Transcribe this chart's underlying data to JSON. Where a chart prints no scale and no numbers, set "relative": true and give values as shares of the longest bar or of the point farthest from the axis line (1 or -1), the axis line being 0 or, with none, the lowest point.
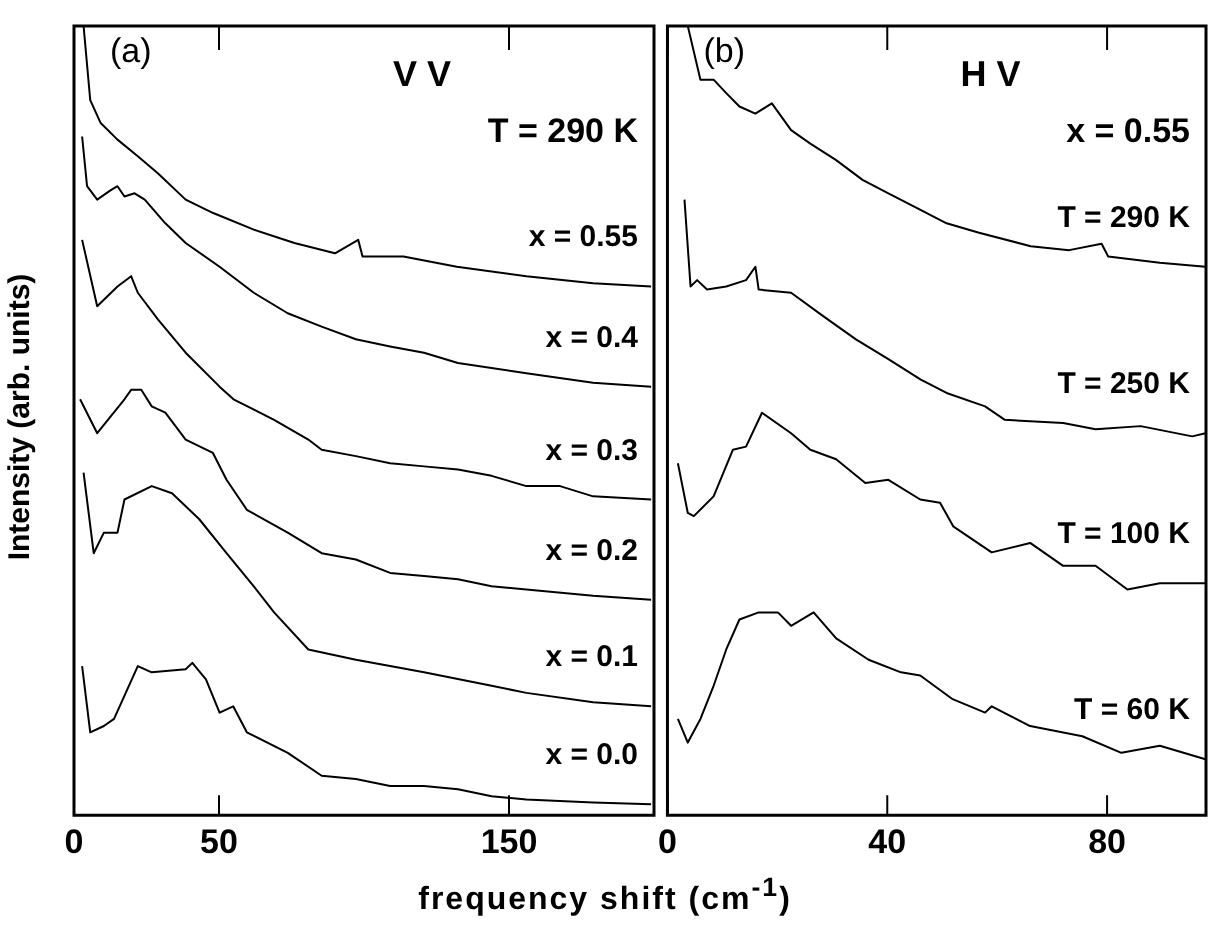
{
  "chart_data": [
    {
      "type": "line",
      "relative": true,
      "xlabel": "frequency shift (cm$^{-1}$)",
      "ylabel": "Intensity (arb. units)",
      "xlim": [
        0,
        200
      ],
      "xticks": [
        0,
        50,
        150
      ],
      "legend": false,
      "marker": "none",
      "line_style": "solid",
      "annotations": [
        "(a)",
        "V V",
        "T = 290 K"
      ],
      "series": [
        {
          "name": "x = 0.55",
          "color": "#000000",
          "x": [
            3.3,
            5.6,
            9.2,
            15,
            22,
            29,
            38.5,
            48,
            62,
            76,
            90,
            98,
            99.5,
            113.6,
            132,
            156,
            179,
            199
          ],
          "values": [
            1.0,
            0.906,
            0.877,
            0.856,
            0.835,
            0.813,
            0.78,
            0.763,
            0.742,
            0.725,
            0.712,
            0.729,
            0.708,
            0.708,
            0.695,
            0.683,
            0.674,
            0.67
          ]
        },
        {
          "name": "x = 0.4",
          "color": "#000000",
          "x": [
            2.8,
            4.5,
            8,
            12.7,
            15,
            17.4,
            20.9,
            24.4,
            31.5,
            38.5,
            50.2,
            62,
            73.7,
            85.4,
            97.2,
            109,
            120.7,
            132.4,
            156,
            179,
            199
          ],
          "values": [
            0.86,
            0.797,
            0.78,
            0.792,
            0.797,
            0.784,
            0.788,
            0.78,
            0.75,
            0.725,
            0.695,
            0.662,
            0.636,
            0.619,
            0.603,
            0.594,
            0.586,
            0.573,
            0.56,
            0.548,
            0.543
          ]
        },
        {
          "name": "x = 0.3",
          "color": "#000000",
          "x": [
            2.8,
            8,
            15,
            19.7,
            22,
            29,
            38.5,
            50.2,
            55,
            69,
            80.8,
            85.4,
            97.2,
            109,
            120.7,
            132.4,
            144,
            156,
            167.6,
            179,
            199
          ],
          "values": [
            0.729,
            0.645,
            0.67,
            0.683,
            0.662,
            0.628,
            0.586,
            0.543,
            0.527,
            0.501,
            0.476,
            0.463,
            0.455,
            0.446,
            0.442,
            0.438,
            0.43,
            0.417,
            0.417,
            0.404,
            0.4
          ]
        },
        {
          "name": "x = 0.2",
          "color": "#000000",
          "x": [
            2.1,
            8,
            17.4,
            19.7,
            23.2,
            26.8,
            31.5,
            38.5,
            47.9,
            52.6,
            59.6,
            73.7,
            85.4,
            97.2,
            109,
            120.7,
            132.4,
            144,
            156,
            179,
            199
          ],
          "values": [
            0.527,
            0.484,
            0.527,
            0.539,
            0.539,
            0.518,
            0.51,
            0.476,
            0.459,
            0.425,
            0.387,
            0.358,
            0.332,
            0.324,
            0.307,
            0.303,
            0.299,
            0.29,
            0.286,
            0.278,
            0.273
          ]
        },
        {
          "name": "x = 0.1",
          "color": "#000000",
          "x": [
            3.3,
            6.8,
            10.3,
            15,
            17.4,
            26.8,
            33.8,
            43.2,
            52.6,
            62,
            69,
            80.8,
            97.2,
            109,
            120.7,
            144,
            156,
            179,
            199
          ],
          "values": [
            0.434,
            0.332,
            0.358,
            0.358,
            0.4,
            0.417,
            0.408,
            0.375,
            0.332,
            0.29,
            0.257,
            0.21,
            0.197,
            0.189,
            0.181,
            0.164,
            0.155,
            0.143,
            0.138
          ]
        },
        {
          "name": "x = 0.0",
          "color": "#000000",
          "x": [
            2.8,
            5.6,
            10.3,
            13.8,
            22,
            26.8,
            38.5,
            40.8,
            45.5,
            50.2,
            54.9,
            59.6,
            73.7,
            85.4,
            97.2,
            109,
            120.7,
            132.4,
            144,
            156,
            179,
            199
          ],
          "values": [
            0.189,
            0.105,
            0.113,
            0.122,
            0.189,
            0.181,
            0.185,
            0.193,
            0.172,
            0.13,
            0.138,
            0.105,
            0.079,
            0.05,
            0.046,
            0.037,
            0.037,
            0.033,
            0.024,
            0.02,
            0.016,
            0.014
          ]
        }
      ]
    },
    {
      "type": "line",
      "relative": true,
      "xlim": [
        0,
        98
      ],
      "xticks": [
        0,
        40,
        80
      ],
      "legend": false,
      "marker": "none",
      "line_style": "solid",
      "annotations": [
        "(b)",
        "H V",
        "x = 0.55"
      ],
      "series": [
        {
          "name": "T = 290 K",
          "color": "#000000",
          "x": [
            3.7,
            6,
            8.4,
            10.7,
            13.1,
            16,
            19,
            22.5,
            26,
            30.7,
            35.5,
            40.2,
            44.9,
            50.8,
            56.7,
            66.1,
            73.1,
            79,
            80.2,
            89.6,
            97.9
          ],
          "values": [
            1.0,
            0.932,
            0.932,
            0.915,
            0.898,
            0.889,
            0.902,
            0.868,
            0.851,
            0.83,
            0.805,
            0.788,
            0.771,
            0.75,
            0.738,
            0.721,
            0.716,
            0.724,
            0.708,
            0.7,
            0.695
          ]
        },
        {
          "name": "T = 250 K",
          "color": "#000000",
          "x": [
            3.1,
            4.2,
            5.4,
            7.2,
            10.7,
            14.3,
            16,
            16.6,
            22.5,
            28.4,
            34.3,
            40.2,
            46.1,
            50.8,
            57.8,
            61.4,
            72,
            77.9,
            86.1,
            95.5,
            97.9
          ],
          "values": [
            0.78,
            0.67,
            0.678,
            0.666,
            0.67,
            0.678,
            0.695,
            0.666,
            0.662,
            0.632,
            0.603,
            0.578,
            0.552,
            0.535,
            0.518,
            0.501,
            0.497,
            0.489,
            0.493,
            0.48,
            0.484
          ]
        },
        {
          "name": "T = 100 K",
          "color": "#000000",
          "x": [
            1.9,
            3.7,
            4.8,
            8.4,
            11.9,
            14.3,
            17.2,
            22.5,
            26,
            30.7,
            36,
            40.2,
            46,
            49.6,
            52,
            59,
            66,
            72,
            77.9,
            83.7,
            89.6,
            97.9
          ],
          "values": [
            0.446,
            0.383,
            0.379,
            0.404,
            0.463,
            0.467,
            0.51,
            0.484,
            0.463,
            0.451,
            0.421,
            0.425,
            0.4,
            0.396,
            0.366,
            0.333,
            0.345,
            0.316,
            0.316,
            0.286,
            0.294,
            0.294
          ]
        },
        {
          "name": "T = 60 K",
          "color": "#000000",
          "x": [
            1.9,
            3.7,
            6,
            8.4,
            10.7,
            13.1,
            16.6,
            20.1,
            22.5,
            26.6,
            30.7,
            36.6,
            42.5,
            46,
            51.9,
            57.8,
            59,
            66,
            75.5,
            82.6,
            89.6,
            97.9
          ],
          "values": [
            0.122,
            0.092,
            0.122,
            0.164,
            0.21,
            0.248,
            0.257,
            0.257,
            0.24,
            0.257,
            0.224,
            0.197,
            0.181,
            0.177,
            0.147,
            0.13,
            0.138,
            0.113,
            0.1,
            0.079,
            0.088,
            0.071
          ]
        }
      ]
    }
  ]
}
